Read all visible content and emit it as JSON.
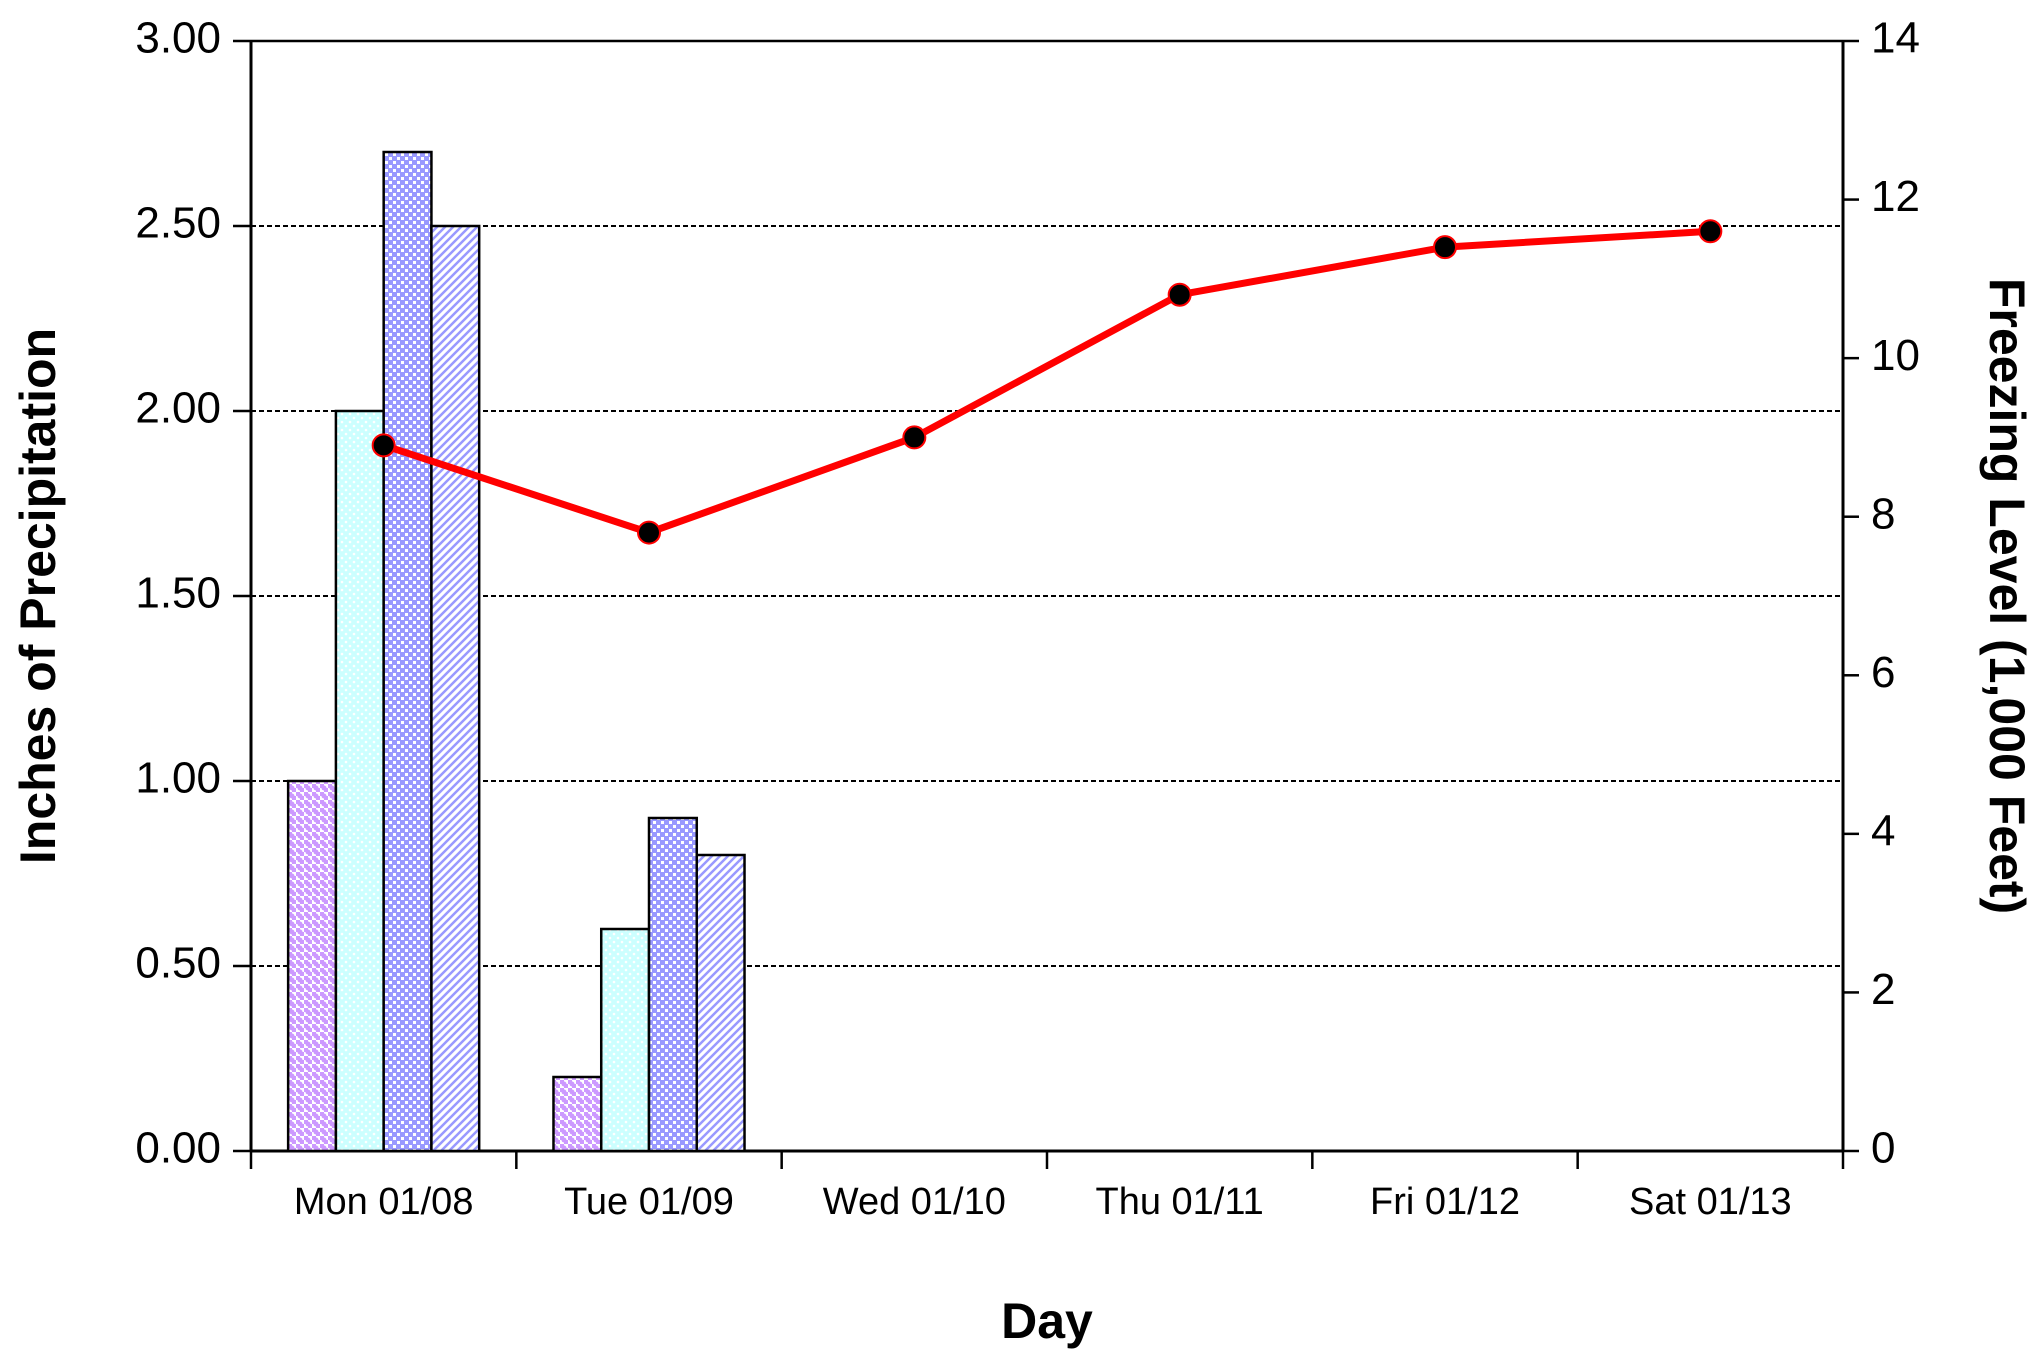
{
  "chart_data": {
    "type": "bar",
    "xlabel": "Day",
    "ylabel": "Inches of Precipitation",
    "y2label": "Freezing Level (1,000 Feet)",
    "categories": [
      "Mon 01/08",
      "Tue 01/09",
      "Wed 01/10",
      "Thu 01/11",
      "Fri 01/12",
      "Sat 01/13"
    ],
    "series": [
      {
        "type": "bar",
        "color": "#cc99ff",
        "pattern": "checker",
        "values": [
          1.0,
          0.2,
          null,
          null,
          null,
          null
        ]
      },
      {
        "type": "bar",
        "color": "#99ffff",
        "pattern": "fine-dots",
        "values": [
          2.0,
          0.6,
          null,
          null,
          null,
          null
        ]
      },
      {
        "type": "bar",
        "color": "#9999ff",
        "pattern": "dots",
        "values": [
          2.7,
          0.9,
          null,
          null,
          null,
          null
        ]
      },
      {
        "type": "bar",
        "color": "#9999ff",
        "pattern": "hatch",
        "values": [
          2.5,
          0.8,
          null,
          null,
          null,
          null
        ]
      },
      {
        "type": "line",
        "axis": "y2",
        "color": "#ff0000",
        "marker_color": "#000000",
        "values": [
          8.9,
          7.8,
          9.0,
          10.8,
          11.4,
          11.6
        ]
      }
    ],
    "ylim": [
      0,
      3
    ],
    "yticks": [
      {
        "value": 0,
        "label": "0.00"
      },
      {
        "value": 0.5,
        "label": "0.50"
      },
      {
        "value": 1,
        "label": "1.00"
      },
      {
        "value": 1.5,
        "label": "1.50"
      },
      {
        "value": 2,
        "label": "2.00"
      },
      {
        "value": 2.5,
        "label": "2.50"
      },
      {
        "value": 3,
        "label": "3.00"
      }
    ],
    "y2lim": [
      0,
      14
    ],
    "y2ticks": [
      0,
      2,
      4,
      6,
      8,
      10,
      12,
      14
    ],
    "grid": true
  }
}
